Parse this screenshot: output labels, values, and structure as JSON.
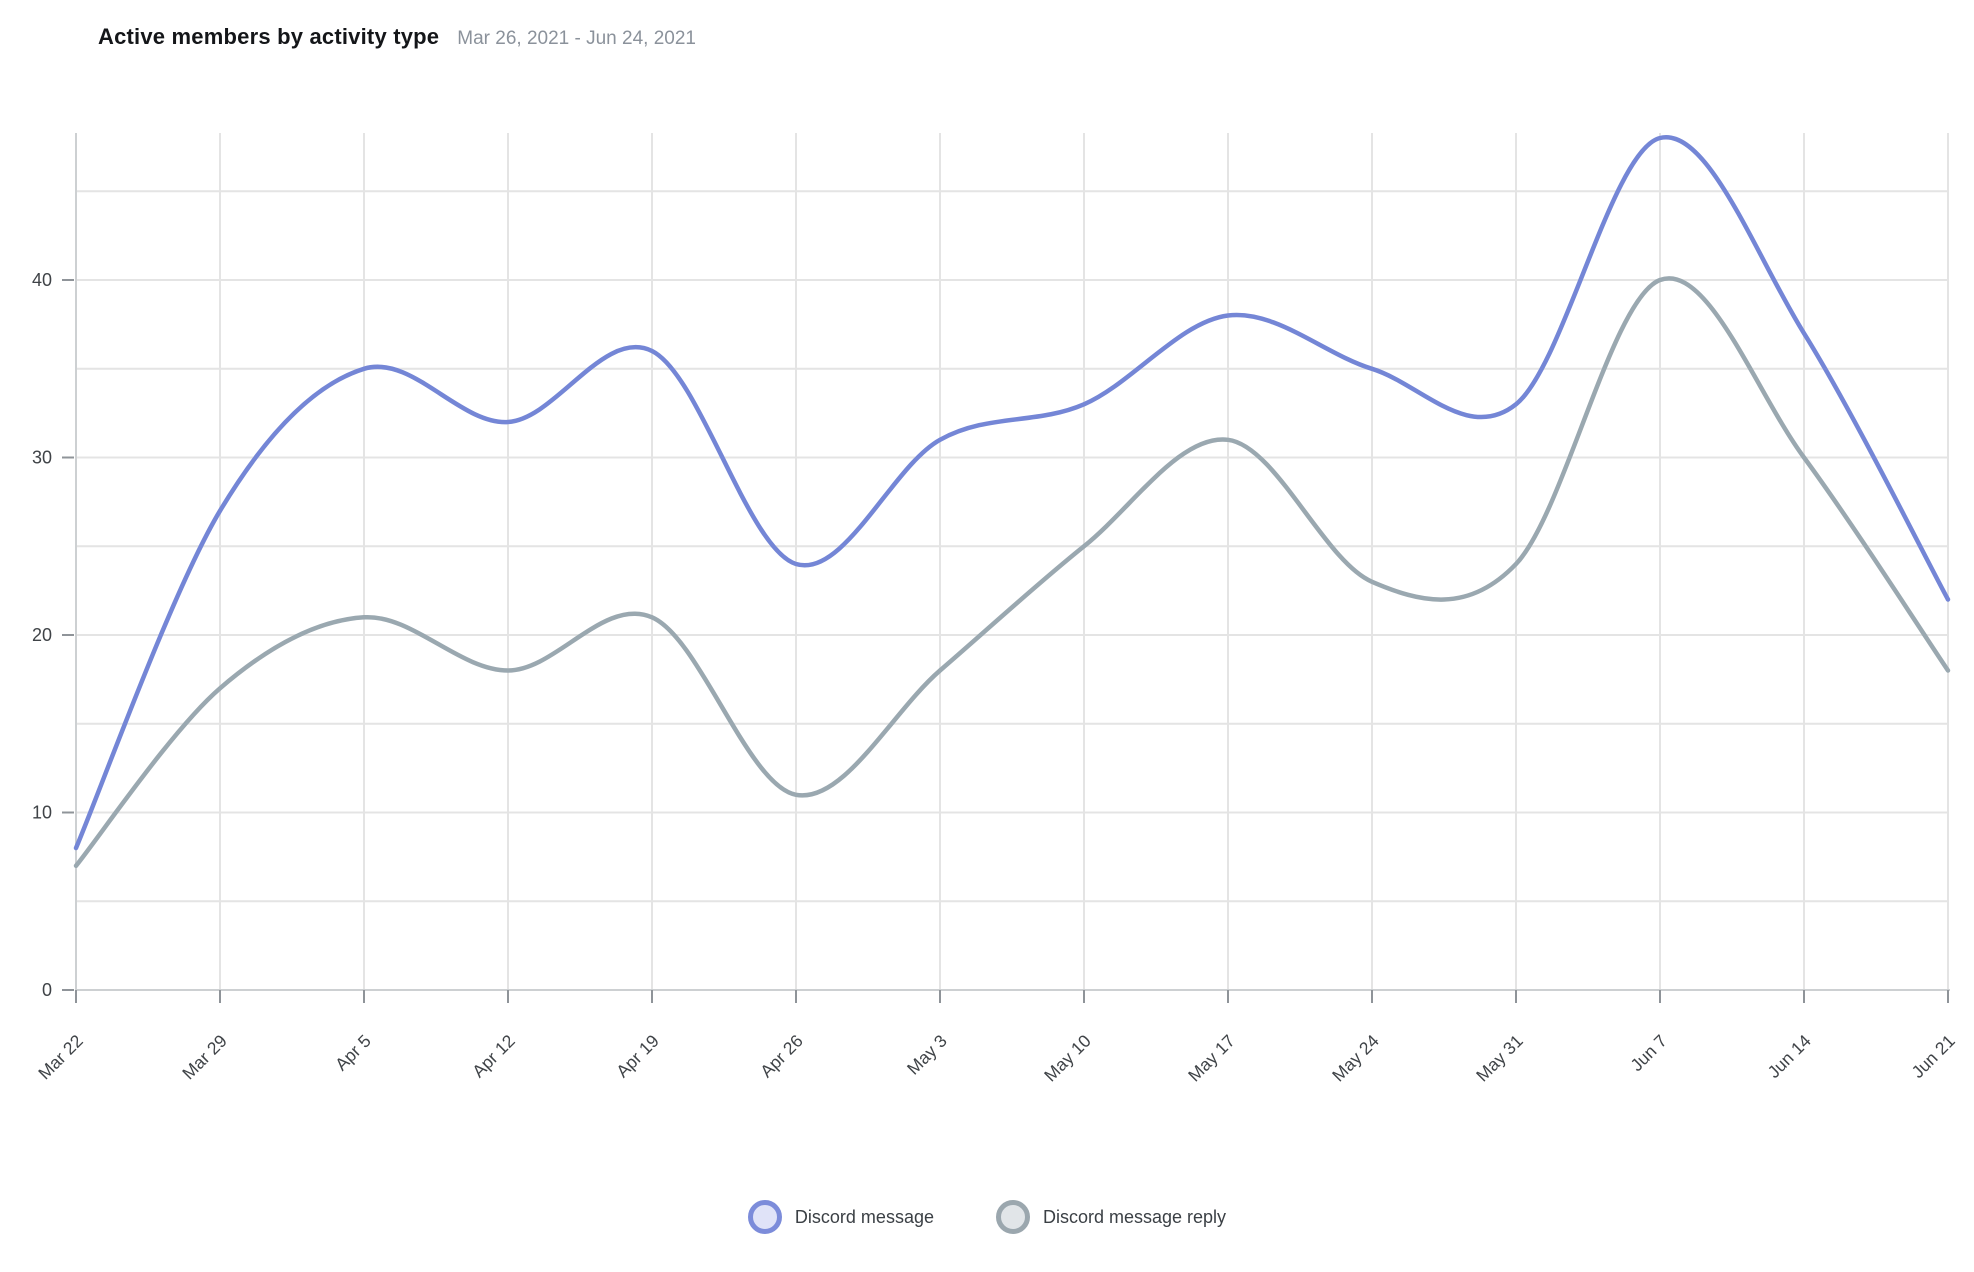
{
  "header": {
    "title": "Active members by activity type",
    "date_range": "Mar 26, 2021 - Jun 24, 2021"
  },
  "chart_data": {
    "type": "line",
    "x_tick_labels": [
      "Mar 22",
      "Mar 29",
      "Apr 5",
      "Apr 12",
      "Apr 19",
      "Apr 26",
      "May 3",
      "May 10",
      "May 17",
      "May 24",
      "May 31",
      "Jun 7",
      "Jun 14",
      "Jun 21"
    ],
    "y_tick_labels": [
      "0",
      "10",
      "20",
      "30",
      "40"
    ],
    "y_ticks": [
      0,
      10,
      20,
      30,
      40
    ],
    "gridline_step": 5,
    "top_gridline_value": 45,
    "ylim": [
      0,
      48
    ],
    "grid": true,
    "curve": "smooth",
    "legend_position": "bottom",
    "series": [
      {
        "name": "Discord message",
        "color": "#7486d6",
        "values": [
          8,
          27,
          35,
          32,
          36,
          24,
          31,
          33,
          38,
          35,
          33,
          48,
          37,
          22
        ]
      },
      {
        "name": "Discord message reply",
        "color": "#9aa8b0",
        "values": [
          7,
          17,
          21,
          18,
          21,
          11,
          18,
          25,
          31,
          23,
          24,
          40,
          30,
          18
        ]
      }
    ]
  },
  "legend": {
    "items": [
      {
        "label": "Discord message",
        "swatch_border": "#7c8cda",
        "swatch_fill": "#e0e3f8"
      },
      {
        "label": "Discord message reply",
        "swatch_border": "#9ba7ae",
        "swatch_fill": "#e1e5e8"
      }
    ]
  },
  "colors": {
    "gridline": "#e4e4e4",
    "axis_line": "#cdd0d2",
    "tick_mark": "#8f9499",
    "tick_label": "#3f4347",
    "title": "#141619",
    "subtitle": "#8b929b"
  }
}
